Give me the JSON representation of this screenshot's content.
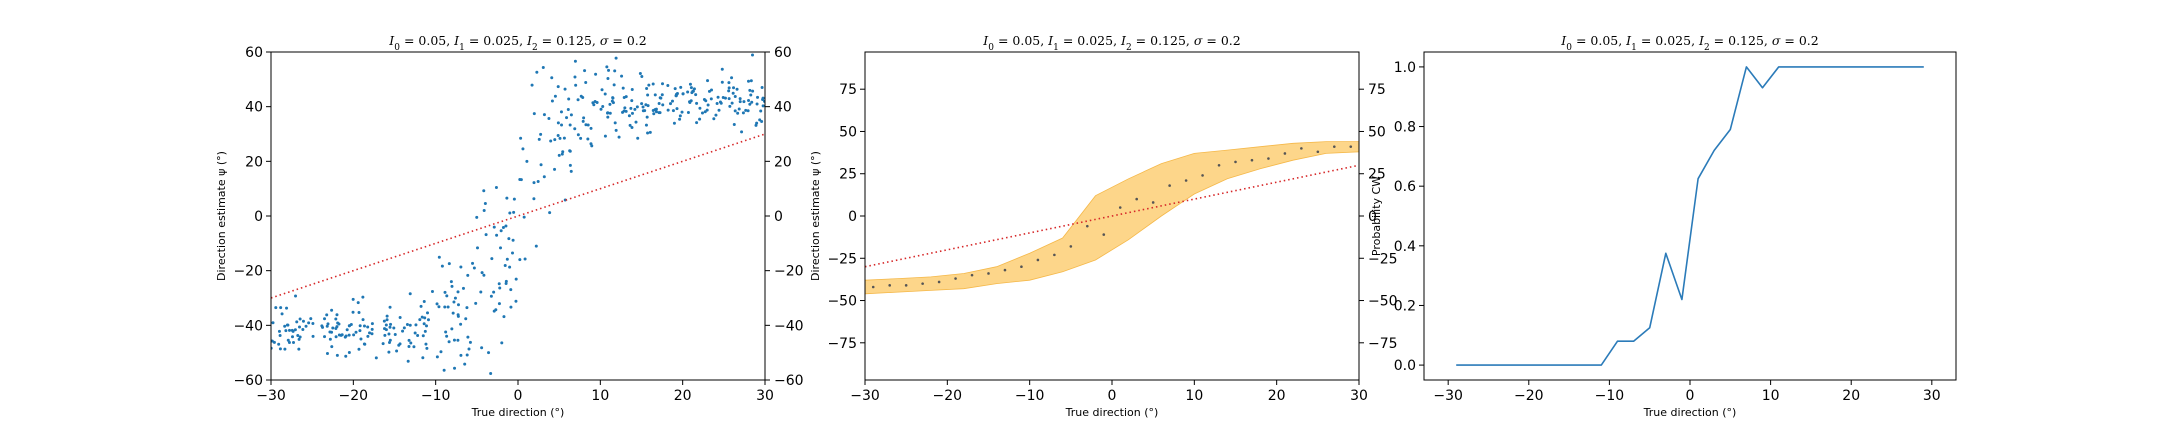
{
  "colors": {
    "scatter": "#1f77b4",
    "identity": "#d62728",
    "band": "#fdd68a",
    "band_edge": "#f5b849",
    "mean_points": "#555555",
    "line": "#2b7bb9"
  },
  "chart_data": [
    {
      "type": "scatter",
      "title": "I_0 = 0.05, I_1 = 0.025, I_2 = 0.125, σ = 0.2",
      "xlabel": "True direction (°)",
      "ylabel": "Direction estimate ψ (°)",
      "xlim": [
        -30,
        30
      ],
      "ylim": [
        -60,
        60
      ],
      "xticks": [
        -30,
        -20,
        -10,
        0,
        10,
        20,
        30
      ],
      "yticks": [
        -60,
        -40,
        -20,
        0,
        20,
        40,
        60
      ],
      "right_axis_ticks": true,
      "grid": false,
      "series": [
        {
          "kind": "points",
          "generator": "sigmoid-cloud",
          "count": 480,
          "seed": 7,
          "min_x": -30,
          "max_x": 30,
          "amplitude": 42,
          "slope": 0.35,
          "jitter": 4.5,
          "noise_center": 15
        },
        {
          "kind": "dotted-line",
          "x": [
            -30,
            30
          ],
          "y": [
            -30,
            30
          ]
        }
      ]
    },
    {
      "type": "line",
      "title": "I_0 = 0.05, I_1 = 0.025, I_2 = 0.125, σ = 0.2",
      "xlabel": "True direction (°)",
      "ylabel": "Direction estimate ψ (°)",
      "xlim": [
        -30,
        30
      ],
      "ylim": [
        -97,
        97
      ],
      "xticks": [
        -30,
        -20,
        -10,
        0,
        10,
        20,
        30
      ],
      "yticks": [
        -75,
        -50,
        -25,
        0,
        25,
        50,
        75
      ],
      "right_axis_ticks": true,
      "grid": false,
      "band": {
        "x": [
          -30,
          -26,
          -22,
          -18,
          -14,
          -10,
          -6,
          -2,
          2,
          6,
          10,
          14,
          18,
          22,
          26,
          30
        ],
        "lower": [
          -46,
          -45,
          -44,
          -43,
          -40,
          -38,
          -33,
          -26,
          -14,
          0,
          13,
          22,
          28,
          33,
          37,
          38
        ],
        "upper": [
          -38,
          -37,
          -36,
          -34,
          -30,
          -22,
          -13,
          12,
          22,
          31,
          37,
          39,
          41,
          43,
          44,
          44
        ]
      },
      "means": {
        "x": [
          -29,
          -27,
          -25,
          -23,
          -21,
          -19,
          -17,
          -15,
          -13,
          -11,
          -9,
          -7,
          -5,
          -3,
          -1,
          1,
          3,
          5,
          7,
          9,
          11,
          13,
          15,
          17,
          19,
          21,
          23,
          25,
          27,
          29
        ],
        "y": [
          -42,
          -41,
          -41,
          -40,
          -39,
          -37,
          -35,
          -34,
          -32,
          -30,
          -26,
          -23,
          -18,
          -6,
          -11,
          5,
          10,
          8,
          18,
          21,
          24,
          30,
          32,
          33,
          34,
          37,
          40,
          38,
          41,
          41
        ]
      },
      "identity": {
        "x": [
          -30,
          30
        ],
        "y": [
          -30,
          30
        ]
      }
    },
    {
      "type": "line",
      "title": "I_0 = 0.05, I_1 = 0.025, I_2 = 0.125, σ = 0.2",
      "xlabel": "True direction (°)",
      "ylabel": "Probability CW",
      "xlim": [
        -33,
        33
      ],
      "ylim": [
        -0.05,
        1.05
      ],
      "xticks": [
        -30,
        -20,
        -10,
        0,
        10,
        20,
        30
      ],
      "yticks": [
        0.0,
        0.2,
        0.4,
        0.6,
        0.8,
        1.0
      ],
      "ytick_labels": [
        "0.0",
        "0.2",
        "0.4",
        "0.6",
        "0.8",
        "1.0"
      ],
      "right_axis_ticks": false,
      "grid": false,
      "series": [
        {
          "name": "",
          "x": [
            -29,
            -27,
            -25,
            -23,
            -21,
            -19,
            -17,
            -15,
            -13,
            -11,
            -9,
            -7,
            -5,
            -3,
            -1,
            1,
            3,
            5,
            7,
            9,
            11,
            13,
            15,
            17,
            19,
            21,
            23,
            25,
            27,
            29
          ],
          "y": [
            0,
            0,
            0,
            0,
            0,
            0,
            0,
            0,
            0,
            0,
            0.08,
            0.08,
            0.125,
            0.375,
            0.22,
            0.625,
            0.72,
            0.79,
            1.0,
            0.93,
            1.0,
            1.0,
            1.0,
            1.0,
            1.0,
            1.0,
            1.0,
            1.0,
            1.0,
            1.0
          ]
        }
      ]
    }
  ]
}
